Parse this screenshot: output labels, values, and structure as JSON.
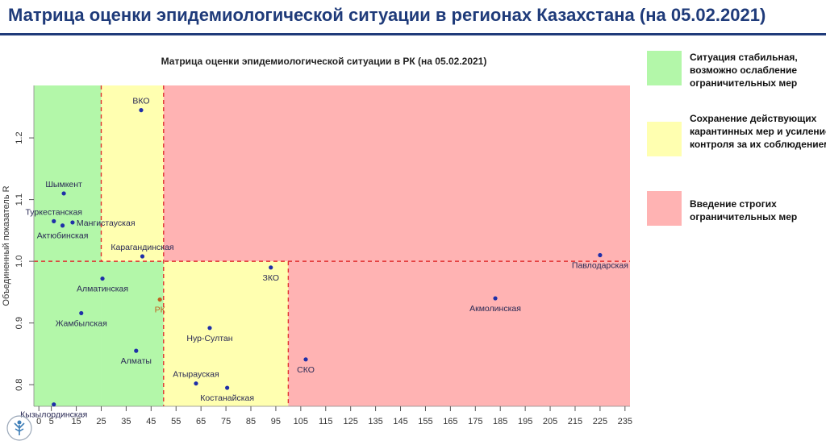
{
  "header": {
    "title": "Матрица оценки эпидемиологической ситуации в регионах Казахстана (на 05.02.2021)",
    "title_color": "#1f3b7a"
  },
  "legend": [
    {
      "color": "#b3f7a9",
      "text": "Ситуация стабильная, возможно ослабление ограничительных мер"
    },
    {
      "color": "#ffffb0",
      "text": "Сохранение действующих карантинных мер и усиление контроля за их соблюдением"
    },
    {
      "color": "#ffb3b3",
      "text": "Введение строгих ограничительных мер"
    }
  ],
  "logo": {
    "icon": "organization-logo-icon"
  },
  "chart_data": {
    "type": "scatter",
    "title": "Матрица оценки эпидемиологической ситуации в РК (на 05.02.2021)",
    "xlabel": "",
    "ylabel": "Объединенный показатель R",
    "xlim": [
      -2,
      237
    ],
    "ylim": [
      0.765,
      1.285
    ],
    "x_ticks": [
      0,
      5,
      15,
      25,
      35,
      45,
      55,
      65,
      75,
      85,
      95,
      105,
      115,
      125,
      135,
      145,
      155,
      165,
      175,
      185,
      195,
      205,
      215,
      225,
      235
    ],
    "y_ticks": [
      0.8,
      0.9,
      1.0,
      1.1,
      1.2
    ],
    "y_tick_labels": [
      "0.8",
      "0.9",
      "1.0",
      "1.1",
      "1.2"
    ],
    "thresholds": {
      "x": [
        25,
        50,
        100
      ],
      "y": 1.0
    },
    "zones": {
      "green": "#b3f7a9",
      "yellow": "#ffffb0",
      "red": "#ffb3b3"
    },
    "threshold_line_color": "#e03030",
    "point_color": "#1f2fa8",
    "rk_color": "#c0601e",
    "points": [
      {
        "name": "ВКО",
        "x": 41,
        "y": 1.245,
        "label_pos": "above"
      },
      {
        "name": "Шымкент",
        "x": 10,
        "y": 1.11,
        "label_pos": "above"
      },
      {
        "name": "Туркестанская",
        "x": 6,
        "y": 1.065,
        "label_pos": "above"
      },
      {
        "name": "Мангистауская",
        "x": 13.5,
        "y": 1.063,
        "label_pos": "right"
      },
      {
        "name": "Актюбинская",
        "x": 9.5,
        "y": 1.058,
        "label_pos": "below"
      },
      {
        "name": "Карагандинская",
        "x": 41.5,
        "y": 1.008,
        "label_pos": "above"
      },
      {
        "name": "ЗКО",
        "x": 93,
        "y": 0.99,
        "label_pos": "below"
      },
      {
        "name": "Павлодарская",
        "x": 225,
        "y": 1.01,
        "label_pos": "below"
      },
      {
        "name": "Алматинская",
        "x": 25.5,
        "y": 0.972,
        "label_pos": "below"
      },
      {
        "name": "РК",
        "x": 48.5,
        "y": 0.938,
        "label_pos": "below"
      },
      {
        "name": "Акмолинская",
        "x": 183,
        "y": 0.94,
        "label_pos": "below"
      },
      {
        "name": "Жамбылская",
        "x": 17,
        "y": 0.916,
        "label_pos": "below"
      },
      {
        "name": "Нур-Султан",
        "x": 68.5,
        "y": 0.892,
        "label_pos": "below"
      },
      {
        "name": "Алматы",
        "x": 39,
        "y": 0.855,
        "label_pos": "below"
      },
      {
        "name": "СКО",
        "x": 107,
        "y": 0.841,
        "label_pos": "below"
      },
      {
        "name": "Атырауская",
        "x": 63,
        "y": 0.802,
        "label_pos": "above"
      },
      {
        "name": "Костанайская",
        "x": 75.5,
        "y": 0.795,
        "label_pos": "below"
      },
      {
        "name": "Кызылординская",
        "x": 6,
        "y": 0.768,
        "label_pos": "below"
      }
    ]
  }
}
